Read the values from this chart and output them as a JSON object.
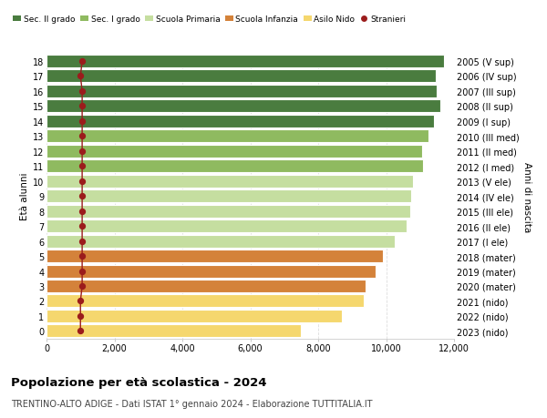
{
  "ages": [
    0,
    1,
    2,
    3,
    4,
    5,
    6,
    7,
    8,
    9,
    10,
    11,
    12,
    13,
    14,
    15,
    16,
    17,
    18
  ],
  "years": [
    "2023 (nido)",
    "2022 (nido)",
    "2021 (nido)",
    "2020 (mater)",
    "2019 (mater)",
    "2018 (mater)",
    "2017 (I ele)",
    "2016 (II ele)",
    "2015 (III ele)",
    "2014 (IV ele)",
    "2013 (V ele)",
    "2012 (I med)",
    "2011 (II med)",
    "2010 (III med)",
    "2009 (I sup)",
    "2008 (II sup)",
    "2007 (III sup)",
    "2006 (IV sup)",
    "2005 (V sup)"
  ],
  "bar_values": [
    7500,
    8700,
    9350,
    9400,
    9700,
    9900,
    10250,
    10600,
    10700,
    10750,
    10800,
    11100,
    11050,
    11250,
    11400,
    11600,
    11500,
    11450,
    11700
  ],
  "stranieri_values": [
    1000,
    1000,
    1000,
    1050,
    1050,
    1050,
    1050,
    1050,
    1050,
    1050,
    1050,
    1050,
    1050,
    1050,
    1050,
    1050,
    1050,
    1000,
    1050
  ],
  "bar_colors": [
    "#f5d76e",
    "#f5d76e",
    "#f5d76e",
    "#d4823a",
    "#d4823a",
    "#d4823a",
    "#c5dea0",
    "#c5dea0",
    "#c5dea0",
    "#c5dea0",
    "#c5dea0",
    "#8fba60",
    "#8fba60",
    "#8fba60",
    "#4a7c3f",
    "#4a7c3f",
    "#4a7c3f",
    "#4a7c3f",
    "#4a7c3f"
  ],
  "legend_labels": [
    "Sec. II grado",
    "Sec. I grado",
    "Scuola Primaria",
    "Scuola Infanzia",
    "Asilo Nido",
    "Stranieri"
  ],
  "legend_colors": [
    "#4a7c3f",
    "#8fba60",
    "#c5dea0",
    "#d4823a",
    "#f5d76e",
    "#9b1c1c"
  ],
  "stranieri_dot_color": "#9b1c1c",
  "line_color": "#9b1c1c",
  "title": "Popolazione per età scolastica - 2024",
  "subtitle": "TRENTINO-ALTO ADIGE - Dati ISTAT 1° gennaio 2024 - Elaborazione TUTTITALIA.IT",
  "ylabel": "Età alunni",
  "right_ylabel": "Anni di nascita",
  "xlim": [
    0,
    12000
  ],
  "xticks": [
    0,
    2000,
    4000,
    6000,
    8000,
    10000,
    12000
  ],
  "xtick_labels": [
    "0",
    "2,000",
    "4,000",
    "6,000",
    "8,000",
    "10,000",
    "12,000"
  ],
  "bg_color": "#ffffff",
  "bar_height": 0.85,
  "grid_color": "#dddddd"
}
